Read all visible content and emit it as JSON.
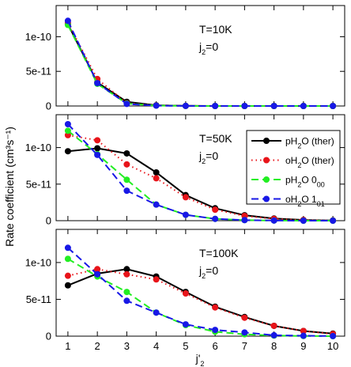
{
  "figure": {
    "ylabel": "Rate coefficient (cm³s⁻¹)",
    "xlabel": "j'",
    "xlabel_sub": "2",
    "x_ticks": [
      1,
      2,
      3,
      4,
      5,
      6,
      7,
      8,
      9,
      10
    ],
    "y_tick_labels": [
      "0",
      "5e-11",
      "1e-10"
    ],
    "legend": {
      "entries": [
        {
          "series": "pH2O_ther",
          "parts": [
            [
              "pH",
              ""
            ],
            [
              "2",
              "sub"
            ],
            [
              "O (ther)",
              ""
            ]
          ]
        },
        {
          "series": "oH2O_ther",
          "parts": [
            [
              "oH",
              ""
            ],
            [
              "2",
              "sub"
            ],
            [
              "O (ther)",
              ""
            ]
          ]
        },
        {
          "series": "pH2O_000",
          "parts": [
            [
              "pH",
              ""
            ],
            [
              "2",
              "sub"
            ],
            [
              "O 0",
              ""
            ],
            [
              "00",
              "sub"
            ]
          ]
        },
        {
          "series": "oH2O_101",
          "parts": [
            [
              "oH",
              ""
            ],
            [
              "2",
              "sub"
            ],
            [
              "O 1",
              ""
            ],
            [
              "01",
              "sub"
            ]
          ]
        }
      ]
    }
  },
  "styles": {
    "pH2O_ther": {
      "color": "#000000",
      "dash": ""
    },
    "oH2O_ther": {
      "color": "#e8141a",
      "dash": "1.5,4"
    },
    "pH2O_000": {
      "color": "#22ee22",
      "dash": "9,5"
    },
    "oH2O_101": {
      "color": "#1818e6",
      "dash": "9,5"
    }
  },
  "chart_data": [
    {
      "type": "line",
      "annotation": {
        "temp": "T=10K",
        "j": "j",
        "j_sub": "2",
        "j_rest": "=0"
      },
      "x": [
        1,
        2,
        3,
        4,
        5,
        6,
        7,
        8,
        9,
        10
      ],
      "ylim": [
        0,
        1.45e-10
      ],
      "y_ticks": [
        0,
        5e-11,
        1e-10
      ],
      "series": [
        {
          "key": "pH2O_ther",
          "values": [
            1.18e-10,
            3.4e-11,
            6e-12,
            1e-12,
            2e-13,
            0,
            0,
            0,
            0,
            0
          ]
        },
        {
          "key": "oH2O_ther",
          "values": [
            1.2e-10,
            3.9e-11,
            4e-12,
            8e-13,
            1e-13,
            0,
            0,
            0,
            0,
            0
          ]
        },
        {
          "key": "pH2O_000",
          "values": [
            1.17e-10,
            3.2e-11,
            3.5e-12,
            6e-13,
            1e-13,
            0,
            0,
            0,
            0,
            0
          ]
        },
        {
          "key": "oH2O_101",
          "values": [
            1.23e-10,
            3.3e-11,
            3e-12,
            5e-13,
            1e-13,
            0,
            0,
            0,
            0,
            0
          ]
        }
      ]
    },
    {
      "type": "line",
      "annotation": {
        "temp": "T=50K",
        "j": "j",
        "j_sub": "2",
        "j_rest": "=0"
      },
      "x": [
        1,
        2,
        3,
        4,
        5,
        6,
        7,
        8,
        9,
        10
      ],
      "ylim": [
        0,
        1.45e-10
      ],
      "y_ticks": [
        0,
        5e-11,
        1e-10
      ],
      "series": [
        {
          "key": "pH2O_ther",
          "values": [
            9.5e-11,
            9.9e-11,
            9.2e-11,
            6.6e-11,
            3.5e-11,
            1.7e-11,
            7.5e-12,
            3e-12,
            1e-12,
            3e-13
          ]
        },
        {
          "key": "oH2O_ther",
          "values": [
            1.17e-10,
            1.1e-10,
            7.7e-11,
            5.8e-11,
            3.2e-11,
            1.5e-11,
            6.5e-12,
            2.5e-12,
            8e-13,
            2e-13
          ]
        },
        {
          "key": "pH2O_000",
          "values": [
            1.23e-10,
            9.1e-11,
            5.6e-11,
            2.2e-11,
            8e-12,
            2.5e-12,
            8e-13,
            2e-13,
            0,
            0
          ]
        },
        {
          "key": "oH2O_101",
          "values": [
            1.32e-10,
            9e-11,
            4.1e-11,
            2.2e-11,
            8e-12,
            2.5e-12,
            8e-13,
            2e-13,
            0,
            0
          ]
        }
      ]
    },
    {
      "type": "line",
      "annotation": {
        "temp": "T=100K",
        "j": "j",
        "j_sub": "2",
        "j_rest": "=0"
      },
      "x": [
        1,
        2,
        3,
        4,
        5,
        6,
        7,
        8,
        9,
        10
      ],
      "ylim": [
        0,
        1.45e-10
      ],
      "y_ticks": [
        0,
        5e-11,
        1e-10
      ],
      "series": [
        {
          "key": "pH2O_ther",
          "values": [
            6.9e-11,
            8.5e-11,
            9.1e-11,
            8.1e-11,
            6e-11,
            4e-11,
            2.6e-11,
            1.4e-11,
            7e-12,
            3.5e-12
          ]
        },
        {
          "key": "oH2O_ther",
          "values": [
            8.2e-11,
            9.1e-11,
            8.4e-11,
            7.7e-11,
            5.8e-11,
            3.9e-11,
            2.5e-11,
            1.4e-11,
            7e-12,
            3e-12
          ]
        },
        {
          "key": "pH2O_000",
          "values": [
            1.05e-10,
            8.1e-11,
            6e-11,
            3.2e-11,
            1.5e-11,
            6e-12,
            2.5e-12,
            8e-13,
            2e-13,
            0
          ]
        },
        {
          "key": "oH2O_101",
          "values": [
            1.2e-10,
            8.4e-11,
            4.8e-11,
            3.2e-11,
            1.6e-11,
            8.5e-12,
            5e-12,
            1.2e-12,
            5e-13,
            1e-13
          ]
        }
      ]
    }
  ]
}
